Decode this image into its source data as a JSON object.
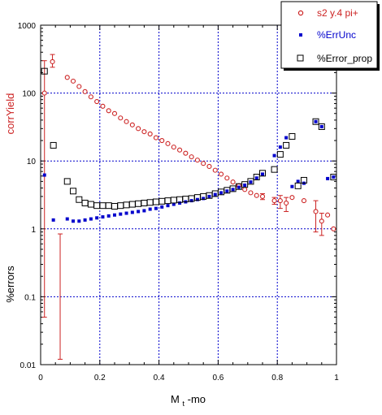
{
  "chart_data": {
    "type": "scatter",
    "title": "",
    "xlabel": "M",
    "xlabel_sub": "t",
    "xlabel_suffix": "-mo",
    "ylabel_top": "corrYield",
    "ylabel_bottom": "%errors",
    "xlim": [
      0,
      1
    ],
    "ylim": [
      0.01,
      1000
    ],
    "yscale": "log",
    "grid": true,
    "legend_position": "top-right",
    "x_ticks": [
      "0",
      "0.2",
      "0.4",
      "0.6",
      "0.8",
      "1"
    ],
    "x_tick_values": [
      0,
      0.2,
      0.4,
      0.6,
      0.8,
      1
    ],
    "y_ticks": [
      "1000",
      "100",
      "10",
      "1",
      "0.1",
      "0.01"
    ],
    "y_tick_values": [
      1000,
      100,
      10,
      1,
      0.1,
      0.01
    ],
    "colors": {
      "red": "#cc2222",
      "blue": "#0000cc",
      "grid": "#0000cc",
      "black": "#000000"
    },
    "series": [
      {
        "name": "s2 y.4 pi+",
        "marker": "open-circle",
        "color": "#cc2222",
        "x": [
          0.013,
          0.04,
          0.09,
          0.11,
          0.13,
          0.15,
          0.17,
          0.19,
          0.21,
          0.23,
          0.25,
          0.27,
          0.29,
          0.31,
          0.33,
          0.35,
          0.37,
          0.39,
          0.41,
          0.43,
          0.45,
          0.47,
          0.49,
          0.51,
          0.53,
          0.55,
          0.57,
          0.59,
          0.61,
          0.63,
          0.65,
          0.67,
          0.69,
          0.71,
          0.73,
          0.75,
          0.79,
          0.81,
          0.83,
          0.85,
          0.89,
          0.93,
          0.95,
          0.97,
          0.99
        ],
        "y": [
          100,
          290,
          170,
          150,
          125,
          105,
          88,
          75,
          64,
          55,
          50,
          43,
          38,
          34,
          30,
          27,
          25,
          22,
          20,
          18,
          16,
          14.5,
          13,
          11.5,
          10.3,
          9.2,
          8.3,
          7.3,
          6.4,
          5.6,
          4.9,
          4.3,
          3.8,
          3.4,
          3.1,
          3.0,
          2.6,
          2.6,
          2.4,
          2.9,
          2.6,
          1.8,
          1.3,
          1.6,
          1.0
        ],
        "err_low": [
          99.95,
          50,
          0,
          0,
          0,
          0,
          0,
          0,
          0,
          0,
          0,
          0,
          0,
          0,
          0,
          0,
          0,
          0,
          0,
          0,
          0,
          0,
          0,
          0,
          0,
          0,
          0,
          0,
          0,
          0,
          0,
          0,
          0,
          0,
          0,
          0.3,
          0.3,
          0.6,
          0.6,
          0,
          0,
          0.9,
          0.5,
          0,
          0
        ],
        "err_high": [
          200,
          80,
          0,
          0,
          0,
          0,
          0,
          0,
          0,
          0,
          0,
          0,
          0,
          0,
          0,
          0,
          0,
          0,
          0,
          0,
          0,
          0,
          0,
          0,
          0,
          0,
          0,
          0,
          0,
          0,
          0,
          0,
          0,
          0,
          0,
          0.3,
          0.3,
          0.5,
          0.5,
          0,
          0,
          0.8,
          0.4,
          0,
          0
        ]
      },
      {
        "name": "",
        "marker": "open-circle-noerr",
        "color": "#cc2222",
        "x": [
          0.066
        ],
        "y": [
          0.012
        ],
        "err_low": [
          0
        ],
        "err_high": [
          0.83
        ]
      },
      {
        "name": "%ErrUnc",
        "marker": "filled-square",
        "color": "#0000cc",
        "x": [
          0.013,
          0.043,
          0.09,
          0.11,
          0.13,
          0.15,
          0.17,
          0.19,
          0.21,
          0.23,
          0.25,
          0.27,
          0.29,
          0.31,
          0.33,
          0.35,
          0.37,
          0.39,
          0.41,
          0.43,
          0.45,
          0.47,
          0.49,
          0.51,
          0.53,
          0.55,
          0.57,
          0.59,
          0.61,
          0.63,
          0.65,
          0.67,
          0.69,
          0.71,
          0.73,
          0.75,
          0.79,
          0.81,
          0.83,
          0.85,
          0.87,
          0.89,
          0.93,
          0.95,
          0.97,
          0.99
        ],
        "y": [
          6.2,
          1.35,
          1.4,
          1.3,
          1.3,
          1.35,
          1.4,
          1.45,
          1.5,
          1.55,
          1.6,
          1.65,
          1.7,
          1.75,
          1.8,
          1.85,
          1.95,
          2.0,
          2.1,
          2.2,
          2.3,
          2.4,
          2.5,
          2.6,
          2.7,
          2.8,
          3.0,
          3.2,
          3.4,
          3.6,
          3.8,
          4.1,
          4.4,
          4.9,
          5.6,
          6.4,
          12,
          16,
          22,
          4.2,
          5.0,
          4.7,
          38,
          32,
          5.5,
          5.8
        ],
        "err_low": [],
        "err_high": []
      },
      {
        "name": "%Error_prop",
        "marker": "open-square",
        "color": "#000000",
        "x": [
          0.013,
          0.043,
          0.09,
          0.11,
          0.13,
          0.15,
          0.17,
          0.19,
          0.21,
          0.23,
          0.25,
          0.27,
          0.29,
          0.31,
          0.33,
          0.35,
          0.37,
          0.39,
          0.41,
          0.43,
          0.45,
          0.47,
          0.49,
          0.51,
          0.53,
          0.55,
          0.57,
          0.59,
          0.61,
          0.63,
          0.65,
          0.67,
          0.69,
          0.71,
          0.73,
          0.75,
          0.79,
          0.81,
          0.83,
          0.85,
          0.87,
          0.89,
          0.93,
          0.95,
          0.99
        ],
        "y": [
          210,
          17,
          5.0,
          3.6,
          2.7,
          2.4,
          2.3,
          2.2,
          2.2,
          2.2,
          2.15,
          2.2,
          2.25,
          2.3,
          2.35,
          2.4,
          2.45,
          2.5,
          2.55,
          2.6,
          2.65,
          2.7,
          2.75,
          2.8,
          2.9,
          3.0,
          3.1,
          3.3,
          3.5,
          3.7,
          3.9,
          4.2,
          4.5,
          5.0,
          5.8,
          6.6,
          7.5,
          12.5,
          17,
          23,
          4.3,
          5.2,
          38,
          32,
          5.8
        ],
        "err_low": [],
        "err_high": []
      }
    ],
    "legend": [
      {
        "label": "s2 y.4 pi+",
        "marker": "open-circle",
        "color": "#cc2222"
      },
      {
        "label": "%ErrUnc",
        "marker": "filled-square",
        "color": "#0000cc"
      },
      {
        "label": "%Error_prop",
        "marker": "open-square",
        "color": "#000000"
      }
    ]
  }
}
